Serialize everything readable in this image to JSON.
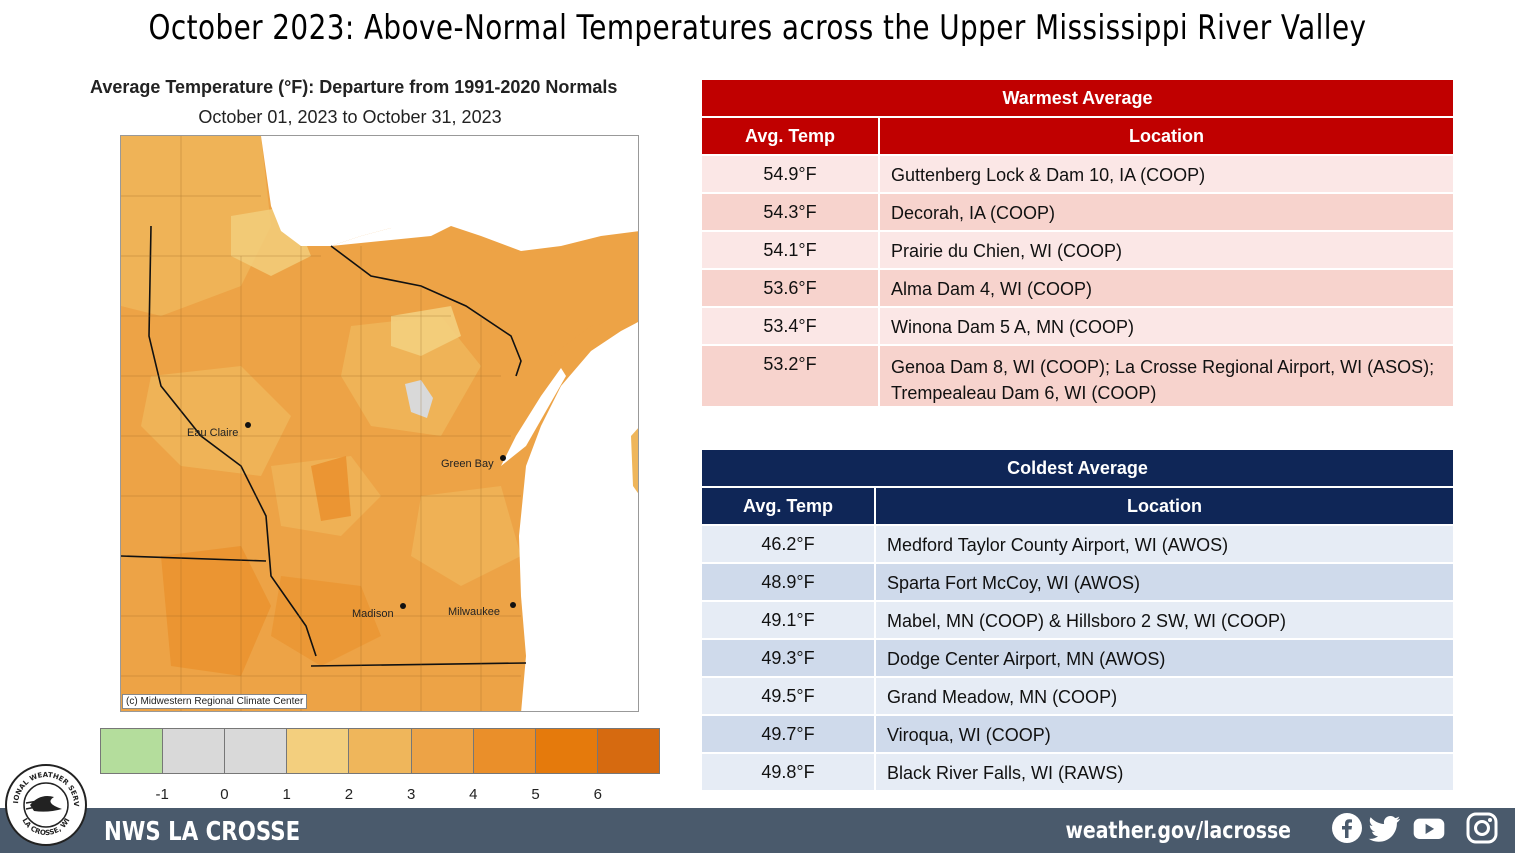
{
  "title": "October 2023:  Above-Normal Temperatures across the Upper Mississippi River Valley",
  "map": {
    "heading": "Average Temperature (°F): Departure from 1991-2020 Normals",
    "dates": "October 01, 2023 to October 31, 2023",
    "cities": [
      "Eau Claire",
      "Green Bay",
      "Madison",
      "Milwaukee"
    ],
    "copyright": "(c) Midwestern Regional Climate Center",
    "legend": {
      "colors": [
        "#b4dd9c",
        "#d9d9d9",
        "#d9d9d9",
        "#f3cf7e",
        "#efb65b",
        "#eda346",
        "#ea8f2a",
        "#e57a0c",
        "#d66a10"
      ],
      "ticks": [
        "-1",
        "0",
        "1",
        "2",
        "3",
        "4",
        "5",
        "6"
      ]
    }
  },
  "warmest": {
    "title": "Warmest  Average",
    "col_temp": "Avg. Temp",
    "col_location": "Location",
    "rows": [
      {
        "temp": "54.9°F",
        "location": "Guttenberg Lock & Dam 10, IA (COOP)"
      },
      {
        "temp": "54.3°F",
        "location": "Decorah, IA (COOP)"
      },
      {
        "temp": "54.1°F",
        "location": "Prairie du Chien, WI (COOP)"
      },
      {
        "temp": "53.6°F",
        "location": "Alma Dam 4, WI (COOP)"
      },
      {
        "temp": "53.4°F",
        "location": "Winona Dam 5 A, MN (COOP)"
      },
      {
        "temp": "53.2°F",
        "location": "Genoa Dam 8, WI (COOP); La Crosse Regional Airport, WI (ASOS); Trempealeau Dam 6, WI (COOP)"
      }
    ]
  },
  "coldest": {
    "title": "Coldest Average",
    "col_temp": "Avg. Temp",
    "col_location": "Location",
    "rows": [
      {
        "temp": "46.2°F",
        "location": "Medford Taylor County Airport, WI (AWOS)"
      },
      {
        "temp": "48.9°F",
        "location": "Sparta Fort McCoy, WI (AWOS)"
      },
      {
        "temp": "49.1°F",
        "location": "Mabel, MN (COOP) & Hillsboro 2 SW, WI (COOP)"
      },
      {
        "temp": "49.3°F",
        "location": "Dodge Center Airport, MN (AWOS)"
      },
      {
        "temp": "49.5°F",
        "location": "Grand Meadow, MN (COOP)"
      },
      {
        "temp": "49.7°F",
        "location": "Viroqua, WI (COOP)"
      },
      {
        "temp": "49.8°F",
        "location": "Black River Falls, WI (RAWS)"
      }
    ]
  },
  "footer": {
    "name": "NWS LA CROSSE",
    "url": "weather.gov/lacrosse",
    "logo_text_top": "NATIONAL WEATHER SERVICE",
    "logo_text_bottom": "LA CROSSE, WI",
    "social": [
      "facebook-icon",
      "twitter-icon",
      "youtube-icon",
      "instagram-icon"
    ]
  },
  "colors": {
    "warm_header": "#c00000",
    "warm_row_a": "#fbe7e6",
    "warm_row_b": "#f7d3cd",
    "cold_header": "#0f2657",
    "cold_row_a": "#e6ecf5",
    "cold_row_b": "#cfdaeb",
    "footer_bg": "#4a5a6c"
  }
}
